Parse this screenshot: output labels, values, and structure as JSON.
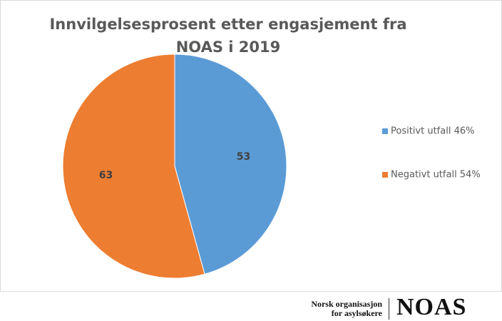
{
  "chart_data": {
    "type": "pie",
    "title": "Innvilgelsesprosent etter engasjement fra NOAS i 2019",
    "categories": [
      "Positivt utfall 46%",
      "Negativt utfall 54%"
    ],
    "values": [
      53,
      63
    ],
    "colors": [
      "#5b9bd5",
      "#ed7d31"
    ]
  },
  "footer": {
    "org_line1": "Norsk organisasjon",
    "org_line2": "for asylsøkere",
    "logo": "NOAS"
  }
}
